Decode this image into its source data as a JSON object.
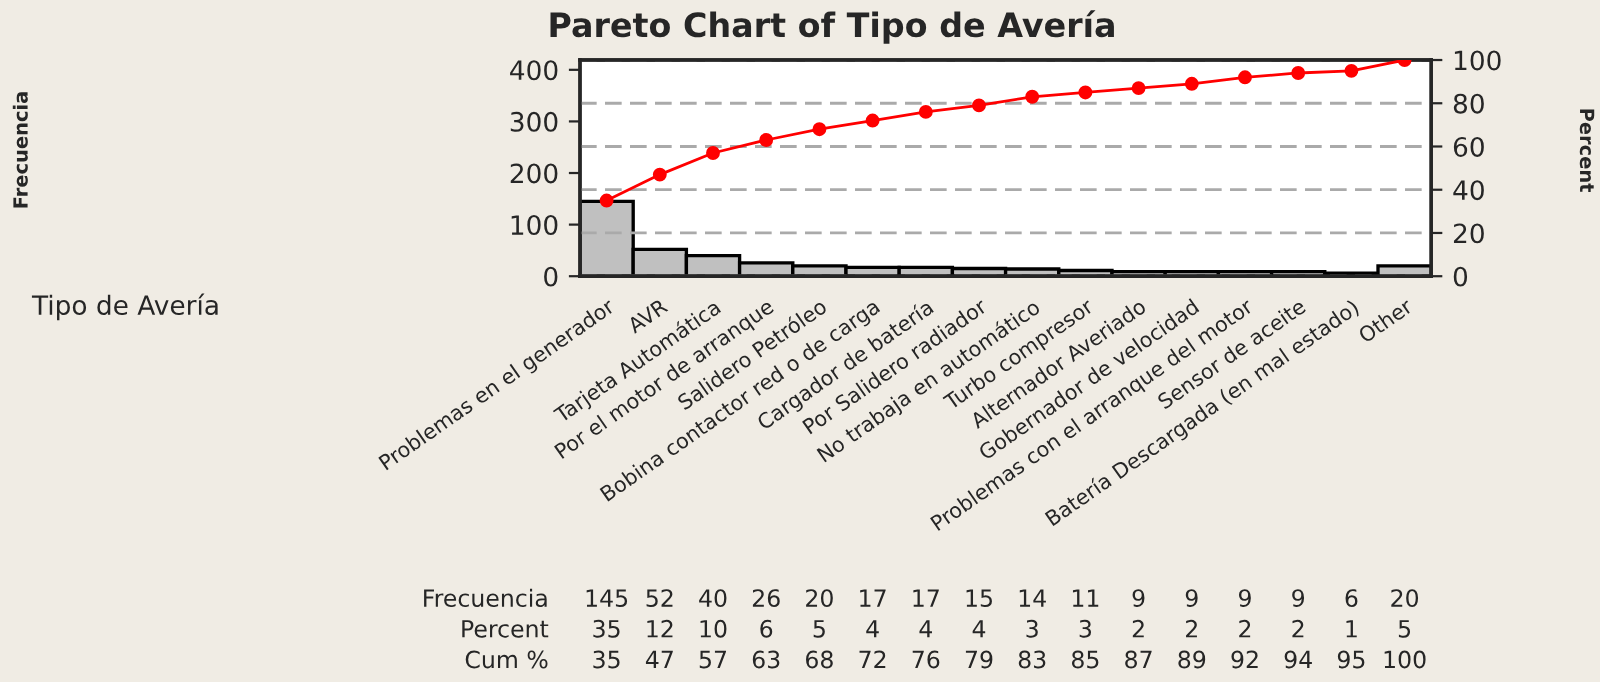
{
  "chart_data": {
    "type": "bar",
    "title": "Pareto Chart of Tipo de Avería",
    "y2label": "Percent",
    "categories": [
      "Problemas en el generador",
      "AVR",
      "Tarjeta Automática",
      "Por el motor de arranque",
      "Salidero Petróleo",
      "Bobina contactor red o de carga",
      "Cargador de batería",
      "Por Salidero radiador",
      "No trabaja en automático",
      "Turbo compresor",
      "Alternador Averiado",
      "Gobernador de velocidad",
      "Problemas con el arranque del motor",
      "Sensor de aceite",
      "Batería Descargada (en mal estado)",
      "Other"
    ],
    "series": [
      {
        "color": "#c0c0c0",
        "values": [
          145,
          52,
          40,
          26,
          20,
          17,
          17,
          15,
          14,
          11,
          9,
          9,
          9,
          9,
          6,
          20
        ]
      },
      {
        "type": "line",
        "axis": "y2",
        "color": "#ff0000",
        "values": [
          35,
          47,
          57,
          63,
          68,
          72,
          76,
          79,
          83,
          85,
          87,
          89,
          92,
          94,
          95,
          100
        ]
      }
    ],
    "annotations": [
      "Frecuencia",
      "Tipo de Avería",
      "Frecuencia",
      "Percent",
      "Cum %",
      "35",
      "12",
      "10",
      "6",
      "5",
      "4",
      "4",
      "4",
      "3",
      "3",
      "2",
      "2",
      "2",
      "2",
      "1",
      "5"
    ],
    "ylim": [
      0,
      419
    ],
    "yticks": [
      0,
      100,
      200,
      300,
      400
    ],
    "y2lim": [
      0,
      100
    ],
    "y2ticks": [
      0,
      20,
      40,
      60,
      80,
      100
    ],
    "grid": "y",
    "marker": "circle",
    "line_style": "solid",
    "data_labels": true
  }
}
